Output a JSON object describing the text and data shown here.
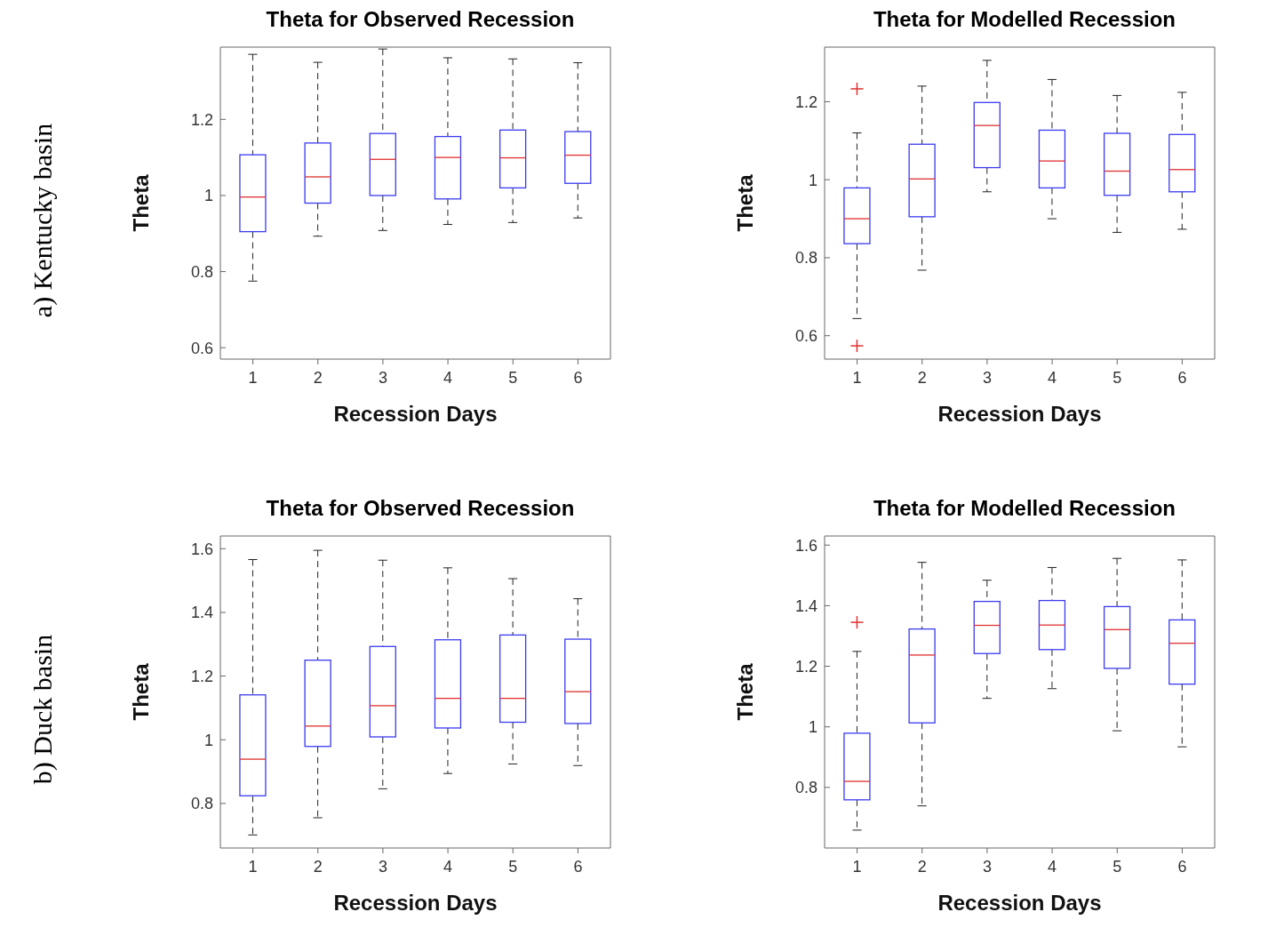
{
  "chart_data": [
    {
      "type": "box",
      "title": "Theta for Observed Recession",
      "xlabel": "Recession Days",
      "ylabel": "Theta",
      "annotations": [
        "a) Kentucky basin"
      ],
      "categories": [
        "1",
        "2",
        "3",
        "4",
        "5",
        "6"
      ],
      "ylim": [
        0.57,
        1.39
      ],
      "yticks": [
        0.6,
        0.8,
        1,
        1.2
      ],
      "series": [
        {
          "color": "#3b3bf0",
          "boxes": [
            {
              "low": 0.775,
              "q1": 0.905,
              "median": 0.996,
              "q3": 1.107,
              "high": 1.371
            },
            {
              "low": 0.893,
              "q1": 0.98,
              "median": 1.049,
              "q3": 1.138,
              "high": 1.35
            },
            {
              "low": 0.908,
              "q1": 1.0,
              "median": 1.095,
              "q3": 1.163,
              "high": 1.385
            },
            {
              "low": 0.924,
              "q1": 0.991,
              "median": 1.1,
              "q3": 1.155,
              "high": 1.362
            },
            {
              "low": 0.929,
              "q1": 1.02,
              "median": 1.099,
              "q3": 1.172,
              "high": 1.359
            },
            {
              "low": 0.941,
              "q1": 1.032,
              "median": 1.106,
              "q3": 1.168,
              "high": 1.349
            }
          ]
        }
      ]
    },
    {
      "type": "box",
      "title": "Theta for Modelled Recession",
      "xlabel": "Recession Days",
      "ylabel": "Theta",
      "categories": [
        "1",
        "2",
        "3",
        "4",
        "5",
        "6"
      ],
      "ylim": [
        0.54,
        1.34
      ],
      "yticks": [
        0.6,
        0.8,
        1,
        1.2
      ],
      "series": [
        {
          "color": "#3b3bf0",
          "boxes": [
            {
              "low": 0.644,
              "q1": 0.836,
              "median": 0.9,
              "q3": 0.979,
              "high": 1.12,
              "outliers": [
                1.233,
                0.574
              ]
            },
            {
              "low": 0.768,
              "q1": 0.905,
              "median": 1.002,
              "q3": 1.091,
              "high": 1.24
            },
            {
              "low": 0.969,
              "q1": 1.031,
              "median": 1.139,
              "q3": 1.198,
              "high": 1.306
            },
            {
              "low": 0.9,
              "q1": 0.979,
              "median": 1.048,
              "q3": 1.127,
              "high": 1.257
            },
            {
              "low": 0.865,
              "q1": 0.96,
              "median": 1.022,
              "q3": 1.119,
              "high": 1.216
            },
            {
              "low": 0.873,
              "q1": 0.969,
              "median": 1.026,
              "q3": 1.116,
              "high": 1.224
            }
          ]
        }
      ]
    },
    {
      "type": "box",
      "title": "Theta for Observed Recession",
      "xlabel": "Recession Days",
      "ylabel": "Theta",
      "annotations": [
        "b) Duck basin"
      ],
      "categories": [
        "1",
        "2",
        "3",
        "4",
        "5",
        "6"
      ],
      "ylim": [
        0.66,
        1.64
      ],
      "yticks": [
        0.8,
        1,
        1.2,
        1.4,
        1.6
      ],
      "series": [
        {
          "color": "#3b3bf0",
          "boxes": [
            {
              "low": 0.701,
              "q1": 0.824,
              "median": 0.939,
              "q3": 1.141,
              "high": 1.566
            },
            {
              "low": 0.755,
              "q1": 0.979,
              "median": 1.043,
              "q3": 1.25,
              "high": 1.595
            },
            {
              "low": 0.846,
              "q1": 1.009,
              "median": 1.107,
              "q3": 1.293,
              "high": 1.564
            },
            {
              "low": 0.894,
              "q1": 1.037,
              "median": 1.13,
              "q3": 1.314,
              "high": 1.54
            },
            {
              "low": 0.924,
              "q1": 1.055,
              "median": 1.13,
              "q3": 1.329,
              "high": 1.506
            },
            {
              "low": 0.919,
              "q1": 1.051,
              "median": 1.151,
              "q3": 1.316,
              "high": 1.443
            }
          ]
        }
      ]
    },
    {
      "type": "box",
      "title": "Theta for Modelled Recession",
      "xlabel": "Recession Days",
      "ylabel": "Theta",
      "categories": [
        "1",
        "2",
        "3",
        "4",
        "5",
        "6"
      ],
      "ylim": [
        0.6,
        1.63
      ],
      "yticks": [
        0.8,
        1,
        1.2,
        1.4,
        1.6
      ],
      "series": [
        {
          "color": "#3b3bf0",
          "boxes": [
            {
              "low": 0.659,
              "q1": 0.759,
              "median": 0.82,
              "q3": 0.979,
              "high": 1.249,
              "outliers": [
                1.345
              ]
            },
            {
              "low": 0.739,
              "q1": 1.013,
              "median": 1.237,
              "q3": 1.323,
              "high": 1.543
            },
            {
              "low": 1.094,
              "q1": 1.242,
              "median": 1.335,
              "q3": 1.414,
              "high": 1.484
            },
            {
              "low": 1.126,
              "q1": 1.255,
              "median": 1.336,
              "q3": 1.417,
              "high": 1.526
            },
            {
              "low": 0.987,
              "q1": 1.193,
              "median": 1.321,
              "q3": 1.397,
              "high": 1.556
            },
            {
              "low": 0.934,
              "q1": 1.141,
              "median": 1.276,
              "q3": 1.353,
              "high": 1.551
            }
          ]
        }
      ]
    }
  ]
}
